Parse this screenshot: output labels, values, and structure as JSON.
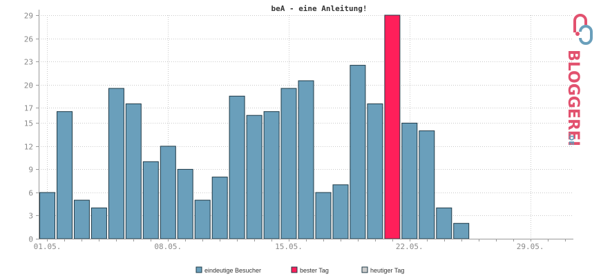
{
  "chart_data": {
    "type": "bar",
    "title": "beA - eine Anleitung!",
    "xlabel": "",
    "ylabel": "",
    "ylim": [
      0,
      29
    ],
    "yticks": [
      0,
      3,
      6,
      9,
      12,
      15,
      17,
      20,
      23,
      26,
      29
    ],
    "x_tick_labels": [
      {
        "label": "01.05.",
        "day": 1
      },
      {
        "label": "08.05.",
        "day": 8
      },
      {
        "label": "15.05.",
        "day": 15
      },
      {
        "label": "22.05.",
        "day": 22
      },
      {
        "label": "29.05.",
        "day": 29
      }
    ],
    "days": 31,
    "values": [
      6,
      16.5,
      5,
      4,
      19.5,
      17.5,
      10,
      12,
      9,
      5,
      8,
      18.5,
      16,
      16.5,
      19.5,
      20.5,
      6,
      7,
      22.5,
      17.5,
      29,
      15,
      14,
      4,
      2,
      0,
      0,
      0,
      0,
      0,
      0
    ],
    "best_day_index": 20,
    "grid": true,
    "legend_position": "bottom-center",
    "colors": {
      "unique": "#6a9fbb",
      "best": "#ff1f5a",
      "today": "#cccccc",
      "bar_stroke": "#1e3946",
      "grid": "#c8c8c8",
      "axis": "#999999"
    },
    "legend": [
      {
        "label": "eindeutige Besucher",
        "color": "#6a9fbb"
      },
      {
        "label": "bester Tag",
        "color": "#ff1f5a"
      },
      {
        "label": "heutiger Tag",
        "color": "#cccccc"
      }
    ]
  },
  "logo": {
    "text": "BLOGGEREI",
    "suffix": ".DE"
  }
}
